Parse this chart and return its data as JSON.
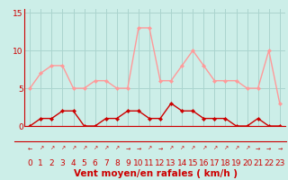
{
  "hours": [
    0,
    1,
    2,
    3,
    4,
    5,
    6,
    7,
    8,
    9,
    10,
    11,
    12,
    13,
    14,
    15,
    16,
    17,
    18,
    19,
    20,
    21,
    22,
    23
  ],
  "wind_avg": [
    0,
    1,
    1,
    2,
    2,
    0,
    0,
    1,
    1,
    2,
    2,
    1,
    1,
    3,
    2,
    2,
    1,
    1,
    1,
    0,
    0,
    1,
    0,
    0
  ],
  "wind_gust": [
    5,
    7,
    8,
    8,
    5,
    5,
    6,
    6,
    5,
    5,
    13,
    13,
    6,
    6,
    8,
    10,
    8,
    6,
    6,
    6,
    5,
    5,
    10,
    3
  ],
  "line_avg_color": "#cc0000",
  "line_gust_color": "#ff9999",
  "bg_color": "#cceee8",
  "grid_color": "#aad4ce",
  "axis_color": "#cc0000",
  "tick_color": "#cc0000",
  "xlabel": "Vent moyen/en rafales ( km/h )",
  "yticks": [
    0,
    5,
    10,
    15
  ],
  "ylim": [
    0,
    15.5
  ],
  "xlim": [
    -0.5,
    23.5
  ],
  "xlabel_fontsize": 7.5,
  "tick_fontsize": 6.5,
  "arrow_chars": [
    "←",
    "↗",
    "↗",
    "↗",
    "↗",
    "↗",
    "↗",
    "↗",
    "↗",
    "→",
    "→",
    "↗",
    "→",
    "↗",
    "↗",
    "↗",
    "↗",
    "↗",
    "↗",
    "↗",
    "↗",
    "→",
    "→",
    "→"
  ]
}
